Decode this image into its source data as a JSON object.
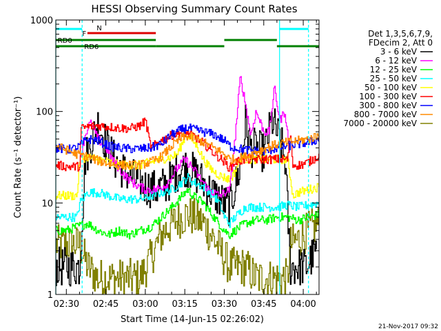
{
  "chart_data": {
    "type": "line",
    "title": "HESSI Observing Summary Count Rates",
    "xlabel": "Start Time (14-Jun-15 02:26:02)",
    "ylabel": "Count Rate (s⁻¹ detector⁻¹)",
    "xlim_minutes_after_0226": [
      0,
      100
    ],
    "ylim": [
      1,
      1000
    ],
    "yscale": "log",
    "x_ticks": [
      {
        "label": "02:30",
        "minute": 4
      },
      {
        "label": "02:45",
        "minute": 19
      },
      {
        "label": "03:00",
        "minute": 34
      },
      {
        "label": "03:15",
        "minute": 49
      },
      {
        "label": "03:30",
        "minute": 64
      },
      {
        "label": "03:45",
        "minute": 79
      },
      {
        "label": "04:00",
        "minute": 94
      }
    ],
    "y_ticks": [
      {
        "label": "1",
        "value": 1
      },
      {
        "label": "10",
        "value": 10
      },
      {
        "label": "100",
        "value": 100
      },
      {
        "label": "1000",
        "value": 1000
      }
    ],
    "legend": {
      "header": [
        "Det 1,3,5,6,7,9,",
        "FDecim 2, Att 0"
      ],
      "placement": "right"
    },
    "series": [
      {
        "name": "3 - 6 keV",
        "color": "#000000",
        "x": [
          0,
          4,
          9,
          11,
          16,
          19,
          22,
          26,
          30,
          34,
          38,
          42,
          46,
          49,
          52,
          55,
          58,
          62,
          66,
          70,
          72,
          74,
          76,
          79,
          82,
          85,
          87,
          89,
          91,
          93,
          95,
          97,
          99
        ],
        "y": [
          2,
          2,
          2,
          30,
          75,
          45,
          30,
          22,
          18,
          15,
          14,
          16,
          22,
          25,
          22,
          18,
          14,
          11,
          9,
          25,
          75,
          40,
          40,
          35,
          80,
          50,
          30,
          2,
          2,
          2,
          2,
          2.5,
          3
        ]
      },
      {
        "name": "6 - 12 keV",
        "color": "#ff00ff",
        "x": [
          9,
          11,
          13,
          16,
          19,
          22,
          26,
          30,
          34,
          38,
          42,
          46,
          49,
          52,
          55,
          58,
          62,
          66,
          68,
          70,
          72,
          74,
          76,
          79,
          81,
          83,
          85,
          87,
          89
        ],
        "y": [
          30,
          55,
          75,
          50,
          40,
          28,
          20,
          16,
          14,
          14,
          16,
          24,
          30,
          24,
          18,
          14,
          12,
          14,
          50,
          240,
          120,
          55,
          100,
          60,
          60,
          180,
          80,
          100,
          30
        ]
      },
      {
        "name": "12 - 25 keV",
        "color": "#00ff00",
        "x": [
          0,
          4,
          8,
          12,
          16,
          20,
          24,
          28,
          32,
          36,
          40,
          44,
          48,
          50,
          52,
          56,
          60,
          64,
          66,
          68,
          72,
          76,
          80,
          84,
          88,
          92,
          96,
          100
        ],
        "y": [
          5,
          5,
          5.5,
          6,
          5,
          4.5,
          5,
          4.5,
          5,
          5.5,
          7,
          9,
          12,
          14,
          12,
          10,
          7,
          5,
          4.5,
          5,
          6,
          6.5,
          6.5,
          7,
          7,
          6.5,
          7,
          7.5
        ]
      },
      {
        "name": "25 - 50 keV",
        "color": "#00ffff",
        "x": [
          0,
          4,
          8,
          9,
          12,
          16,
          20,
          24,
          28,
          32,
          36,
          40,
          44,
          48,
          50,
          52,
          56,
          60,
          62,
          64,
          66,
          68,
          72,
          76,
          80,
          84,
          88,
          92,
          96,
          100
        ],
        "y": [
          7,
          7,
          7,
          10,
          13,
          13,
          12,
          11,
          11,
          11,
          12,
          13,
          14,
          17,
          19,
          17,
          15,
          12,
          10,
          7,
          6,
          7,
          9,
          9,
          9,
          9,
          9.5,
          9,
          9.5,
          10
        ]
      },
      {
        "name": "50 - 100 keV",
        "color": "#ffff00",
        "x": [
          0,
          4,
          8,
          9,
          12,
          16,
          20,
          24,
          28,
          32,
          34,
          36,
          40,
          44,
          46,
          48,
          49,
          50,
          52,
          54,
          56,
          58,
          60,
          62,
          64,
          66,
          68,
          70,
          74,
          78,
          82,
          86,
          88,
          90,
          92,
          96,
          100
        ],
        "y": [
          12,
          12,
          12,
          30,
          32,
          30,
          28,
          26,
          26,
          26,
          27,
          28,
          30,
          32,
          34,
          45,
          54,
          55,
          48,
          40,
          30,
          25,
          22,
          20,
          19,
          18,
          22,
          30,
          30,
          30,
          30,
          30,
          30,
          12,
          13,
          14,
          15
        ]
      },
      {
        "name": "100 - 300 keV",
        "color": "#ff0000",
        "x": [
          0,
          4,
          9,
          9.5,
          12,
          16,
          20,
          24,
          28,
          32,
          34,
          36,
          40,
          44,
          48,
          52,
          56,
          60,
          64,
          66,
          68,
          72,
          76,
          80,
          84,
          88,
          89,
          90,
          93,
          96,
          100
        ],
        "y": [
          26,
          25,
          25,
          65,
          68,
          70,
          68,
          66,
          65,
          70,
          80,
          40,
          48,
          55,
          60,
          55,
          45,
          35,
          28,
          24,
          28,
          30,
          30,
          30,
          30,
          30,
          60,
          26,
          26,
          28,
          33
        ]
      },
      {
        "name": "300 - 800 keV",
        "color": "#0000ff",
        "x": [
          0,
          4,
          8,
          12,
          16,
          20,
          24,
          28,
          32,
          36,
          40,
          44,
          48,
          50,
          52,
          56,
          60,
          64,
          66,
          68,
          72,
          76,
          80,
          84,
          88,
          92,
          96,
          100
        ],
        "y": [
          40,
          38,
          40,
          50,
          48,
          42,
          40,
          39,
          39,
          40,
          44,
          56,
          64,
          66,
          64,
          60,
          56,
          48,
          42,
          40,
          38,
          37,
          37,
          40,
          42,
          44,
          46,
          50
        ]
      },
      {
        "name": "800 - 7000 keV",
        "color": "#ff8c00",
        "x": [
          0,
          4,
          8,
          12,
          16,
          20,
          24,
          28,
          32,
          36,
          40,
          44,
          48,
          50,
          52,
          56,
          60,
          64,
          66,
          68,
          72,
          76,
          80,
          84,
          88,
          92,
          96,
          100
        ],
        "y": [
          42,
          38,
          34,
          32,
          29,
          27,
          26,
          26,
          26,
          28,
          32,
          42,
          52,
          54,
          52,
          46,
          40,
          34,
          30,
          30,
          32,
          36,
          40,
          44,
          46,
          48,
          50,
          55
        ]
      },
      {
        "name": "7000 - 20000 keV",
        "color": "#808000",
        "x": [
          0,
          4,
          9,
          12,
          16,
          20,
          24,
          28,
          32,
          36,
          40,
          44,
          48,
          50,
          52,
          56,
          60,
          64,
          66,
          68,
          72,
          76,
          80,
          84,
          88,
          89,
          92,
          96,
          100
        ],
        "y": [
          3.5,
          3.5,
          3.5,
          2,
          1.5,
          1.5,
          1.5,
          1.5,
          1.5,
          2.5,
          4.5,
          6,
          7,
          7.5,
          7,
          6,
          4,
          2.5,
          2,
          2,
          2,
          1.5,
          1.5,
          1.5,
          1.5,
          3.5,
          4,
          5,
          6
        ]
      }
    ],
    "state_bars": [
      {
        "label": "F",
        "color": "#dd0000",
        "level": "upper",
        "segments": [
          [
            12,
            38
          ]
        ]
      },
      {
        "label": "N",
        "color": "#00ffff",
        "level": "top",
        "segments": [
          [
            0,
            10
          ],
          [
            85,
            96
          ]
        ]
      },
      {
        "label": "RD0",
        "color": "#008000",
        "level": "middle",
        "segments": [
          [
            0,
            38
          ],
          [
            64,
            84
          ]
        ]
      },
      {
        "label": "RD6",
        "color": "#008000",
        "level": "lower",
        "segments": [
          [
            0,
            38
          ],
          [
            38,
            64
          ],
          [
            84,
            100
          ]
        ]
      }
    ],
    "vertical_markers": [
      {
        "minute": 0,
        "color": "#00ffff",
        "style": "solid"
      },
      {
        "minute": 10,
        "color": "#00ffff",
        "style": "dashed"
      },
      {
        "minute": 85,
        "color": "#00ffff",
        "style": "solid"
      },
      {
        "minute": 96,
        "color": "#00ffff",
        "style": "dashed"
      }
    ]
  },
  "footer": {
    "timestamp": "21-Nov-2017 09:32"
  }
}
